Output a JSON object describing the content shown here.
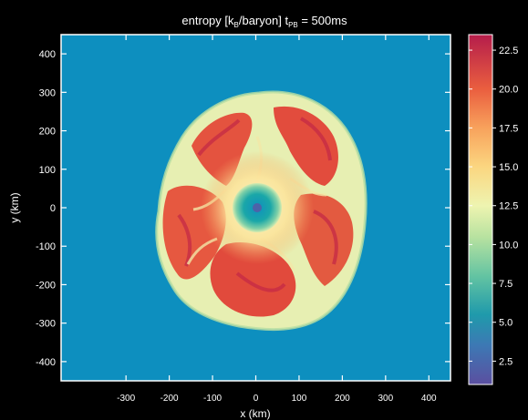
{
  "chart_data": {
    "type": "heatmap",
    "title": {
      "prefix": "entropy [k",
      "sub1": "B",
      "middle": "/baryon] t",
      "sub2": "PB",
      "suffix": " = 500ms"
    },
    "xlabel": "x (km)",
    "ylabel": "y (km)",
    "xlim": [
      -450,
      450
    ],
    "ylim": [
      -450,
      450
    ],
    "xticks": [
      -300,
      -200,
      -100,
      0,
      100,
      200,
      300,
      400
    ],
    "yticks": [
      400,
      300,
      200,
      100,
      0,
      -100,
      -200,
      -300,
      -400
    ],
    "colorbar": {
      "range": [
        1.0,
        23.5
      ],
      "ticks": [
        "22.5",
        "20.0",
        "17.5",
        "15.0",
        "12.5",
        "10.0",
        "7.5",
        "5.0",
        "2.5"
      ],
      "tick_values": [
        22.5,
        20.0,
        17.5,
        15.0,
        12.5,
        10.0,
        7.5,
        5.0,
        2.5
      ],
      "colormap": "Spectral_r",
      "stops": [
        {
          "v": 1.0,
          "c": "#5b4fa0"
        },
        {
          "v": 3.5,
          "c": "#3d78b4"
        },
        {
          "v": 5.5,
          "c": "#1f9aab"
        },
        {
          "v": 8.0,
          "c": "#64c4a2"
        },
        {
          "v": 10.5,
          "c": "#b8e2a0"
        },
        {
          "v": 12.5,
          "c": "#eef4b0"
        },
        {
          "v": 15.0,
          "c": "#fbd680"
        },
        {
          "v": 17.5,
          "c": "#f8a25c"
        },
        {
          "v": 20.0,
          "c": "#ea5e3f"
        },
        {
          "v": 23.5,
          "c": "#b51d4b"
        }
      ]
    },
    "background_value": 5.0,
    "features": {
      "shock_region": "ejecta bubble, entropy ~12-22",
      "proto_neutron_star": "center (0,0), entropy ~5",
      "core": "entropy ~2.5"
    },
    "colors": {
      "background_field": "#0d8fbf",
      "page_background": "#000000",
      "frame": "#ffffff"
    }
  }
}
